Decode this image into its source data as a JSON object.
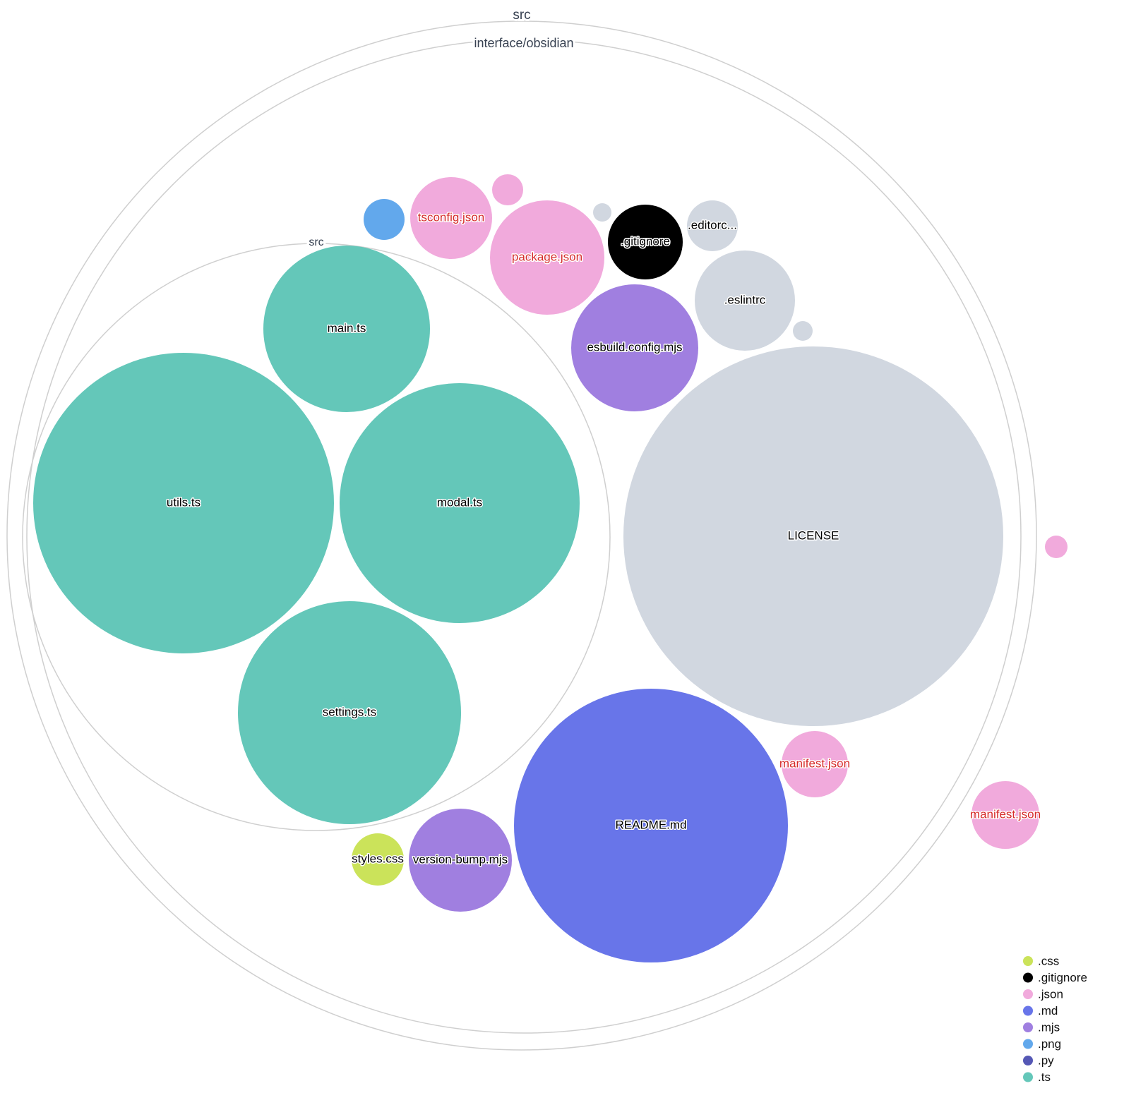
{
  "colors": {
    ".css": "#cbe35a",
    ".gitignore": "#000000",
    ".json": "#f1aadc",
    ".md": "#6875e9",
    ".mjs": "#a07fe0",
    ".png": "#62a8ec",
    ".py": "#5558b5",
    ".ts": "#64c7b9",
    "other": "#d1d7e0",
    "json_label": "#d62b2b"
  },
  "folders": [
    {
      "name": "src"
    },
    {
      "name": "interface/obsidian"
    },
    {
      "name": "src"
    }
  ],
  "files": [
    {
      "label": "main.ts",
      "ext": ".ts"
    },
    {
      "label": "utils.ts",
      "ext": ".ts"
    },
    {
      "label": "modal.ts",
      "ext": ".ts"
    },
    {
      "label": "settings.ts",
      "ext": ".ts"
    },
    {
      "label": "LICENSE",
      "ext": "other"
    },
    {
      "label": "README.md",
      "ext": ".md"
    },
    {
      "label": "esbuild.config.mjs",
      "ext": ".mjs"
    },
    {
      "label": ".eslintrc",
      "ext": "other"
    },
    {
      "label": "package.json",
      "ext": ".json"
    },
    {
      "label": "tsconfig.json",
      "ext": ".json"
    },
    {
      "label": ".gitignore",
      "ext": ".gitignore"
    },
    {
      "label": ".editorc...",
      "ext": "other"
    },
    {
      "label": "",
      "ext": ".png"
    },
    {
      "label": "",
      "ext": ".json"
    },
    {
      "label": "",
      "ext": "other"
    },
    {
      "label": "",
      "ext": "other"
    },
    {
      "label": "manifest.json",
      "ext": ".json"
    },
    {
      "label": "manifest.json",
      "ext": ".json"
    },
    {
      "label": "",
      "ext": ".json"
    },
    {
      "label": "styles.css",
      "ext": ".css"
    },
    {
      "label": "version-bump.mjs",
      "ext": ".mjs"
    }
  ],
  "legend": [
    ".css",
    ".gitignore",
    ".json",
    ".md",
    ".mjs",
    ".png",
    ".py",
    ".ts"
  ]
}
